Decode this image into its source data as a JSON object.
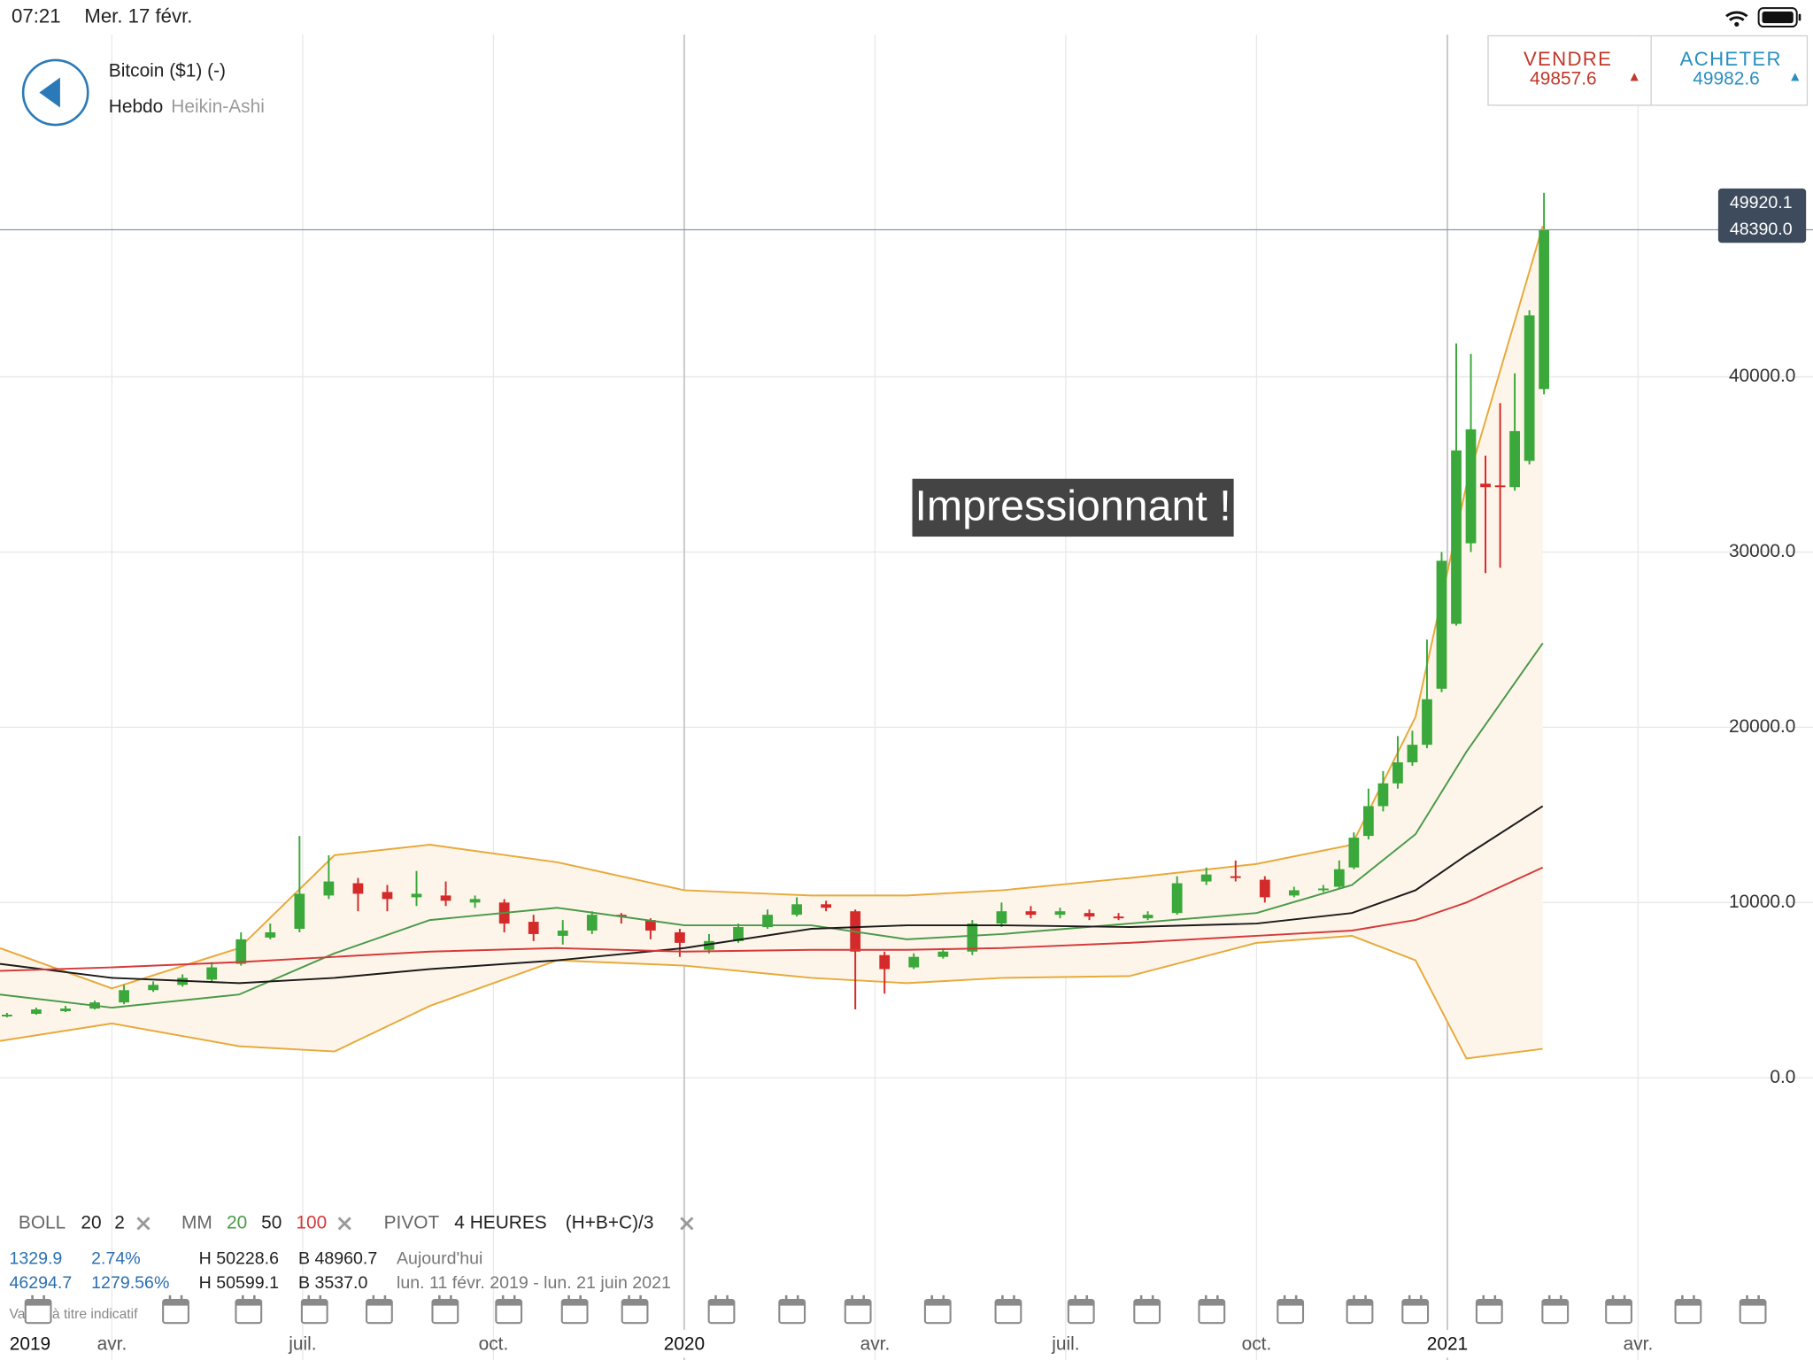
{
  "status": {
    "time": "07:21",
    "date": "Mer. 17 févr."
  },
  "header": {
    "instrument": "Bitcoin ($1) (-)",
    "period": "Hebdo",
    "chart_style": "Heikin-Ashi"
  },
  "trade": {
    "sell": {
      "label": "VENDRE",
      "price": "49857.6"
    },
    "buy": {
      "label": "ACHETER",
      "price": "49982.6"
    }
  },
  "price_box": [
    "49920.1",
    "48390.0"
  ],
  "indicators": {
    "boll": {
      "label": "BOLL",
      "params": [
        "20",
        "2"
      ]
    },
    "pivot": {
      "label": "PIVOT",
      "period": "4 HEURES",
      "formula": "(H+B+C)/3"
    }
  },
  "info": {
    "rows": [
      [
        "1329.9",
        "2.74%",
        "H 50228.6",
        "B 48960.7",
        "Aujourd'hui"
      ],
      [
        "46294.7",
        "1279.56%",
        "H 50599.1",
        "B 3537.0",
        "lun. 11 févr. 2019 - lun. 21 juin 2021"
      ]
    ],
    "disclaimer": "Valeur à titre indicatif"
  },
  "chart_data": {
    "type": "candlestick",
    "annotation": "Impressionnant !",
    "xlim": [
      1.24,
      29.75
    ],
    "xticks": [
      {
        "value": 0,
        "label": "2019"
      },
      {
        "value": 3,
        "label": "avr."
      },
      {
        "value": 6,
        "label": "juil."
      },
      {
        "value": 9,
        "label": "oct."
      },
      {
        "value": 12,
        "label": "2020"
      },
      {
        "value": 15,
        "label": "avr."
      },
      {
        "value": 18,
        "label": "juil."
      },
      {
        "value": 21,
        "label": "oct."
      },
      {
        "value": 24,
        "label": "2021"
      },
      {
        "value": 27,
        "label": "avr."
      }
    ],
    "ylim": [
      -10100,
      61500
    ],
    "yticks": [
      {
        "value": 0,
        "label": "0.0"
      },
      {
        "value": 10000,
        "label": "10000.0"
      },
      {
        "value": 20000,
        "label": "20000.0"
      },
      {
        "value": 30000,
        "label": "30000.0"
      },
      {
        "value": 40000,
        "label": "40000.0"
      }
    ],
    "grid": true,
    "up_color": "#3aa83a",
    "down_color": "#d42a2a",
    "candles": {
      "x": [
        1.35,
        1.81,
        2.27,
        2.73,
        3.19,
        3.65,
        4.11,
        4.57,
        5.03,
        5.49,
        5.95,
        6.41,
        6.87,
        7.33,
        7.79,
        8.25,
        8.71,
        9.17,
        9.63,
        10.09,
        10.55,
        11.01,
        11.47,
        11.93,
        12.39,
        12.85,
        13.31,
        13.77,
        14.23,
        14.69,
        15.15,
        15.61,
        16.07,
        16.53,
        16.99,
        17.45,
        17.91,
        18.37,
        18.83,
        19.29,
        19.75,
        20.21,
        20.67,
        21.13,
        21.59,
        22.05,
        22.3,
        22.53,
        22.76,
        22.99,
        23.22,
        23.45,
        23.68,
        23.91,
        24.14,
        24.37,
        24.6,
        24.83,
        25.06,
        25.29,
        25.52
      ],
      "open": [
        3500,
        3650,
        3800,
        3950,
        4300,
        5000,
        5300,
        5600,
        6500,
        8000,
        8500,
        10400,
        11100,
        10600,
        10300,
        10400,
        10000,
        10000,
        8900,
        8100,
        8400,
        9300,
        9000,
        8300,
        7300,
        7800,
        8600,
        9300,
        9900,
        9500,
        7000,
        6300,
        6900,
        7200,
        8800,
        9500,
        9300,
        9400,
        9200,
        9100,
        9400,
        11200,
        11500,
        11300,
        10400,
        10700,
        10900,
        12000,
        13800,
        15500,
        16800,
        18000,
        19000,
        22200,
        25900,
        30500,
        33900,
        33800,
        33700,
        35200,
        39300
      ],
      "high": [
        3700,
        4000,
        4100,
        4400,
        5300,
        5500,
        5900,
        6600,
        8300,
        8800,
        13800,
        12700,
        11400,
        11000,
        11800,
        11200,
        10400,
        10200,
        9300,
        9000,
        9500,
        9400,
        9100,
        8500,
        8200,
        8800,
        9600,
        10300,
        10100,
        9600,
        7200,
        7100,
        7400,
        9000,
        10000,
        9800,
        9700,
        9600,
        9400,
        9500,
        11500,
        12000,
        12400,
        11500,
        10900,
        11000,
        12400,
        14000,
        16500,
        17500,
        19500,
        19800,
        25000,
        30000,
        41900,
        41300,
        35500,
        38500,
        40200,
        43800,
        50500
      ],
      "low": [
        3450,
        3600,
        3750,
        3900,
        4200,
        4900,
        5200,
        5500,
        6400,
        7900,
        8300,
        10200,
        9500,
        9500,
        9800,
        9800,
        9700,
        8300,
        7800,
        7600,
        8200,
        8800,
        7900,
        6900,
        7100,
        7700,
        8500,
        9200,
        9500,
        3900,
        4800,
        6200,
        6800,
        7000,
        8600,
        9100,
        9100,
        9000,
        9000,
        9000,
        9300,
        11000,
        11200,
        10000,
        10300,
        10600,
        10800,
        11900,
        13600,
        15200,
        16500,
        17800,
        18800,
        22000,
        25800,
        30000,
        28800,
        29100,
        33500,
        35000,
        39000
      ],
      "close": [
        3600,
        3900,
        3950,
        4300,
        5000,
        5300,
        5700,
        6300,
        7900,
        8300,
        10500,
        11200,
        10500,
        10200,
        10500,
        10100,
        10200,
        8800,
        8200,
        8400,
        9300,
        9200,
        8400,
        7700,
        7800,
        8600,
        9300,
        9900,
        9700,
        7200,
        6200,
        6900,
        7200,
        8800,
        9500,
        9300,
        9500,
        9200,
        9100,
        9300,
        11100,
        11600,
        11400,
        10300,
        10700,
        10800,
        11900,
        13700,
        15500,
        16800,
        18000,
        19000,
        21600,
        29500,
        35800,
        37000,
        33700,
        33700,
        36900,
        43500,
        48390
      ]
    },
    "line_x": [
      1.24,
      3,
      5,
      6.5,
      8,
      10,
      12,
      14,
      15.5,
      17,
      19,
      21,
      22.5,
      23.5,
      24.3,
      25.5
    ],
    "bands": {
      "color": "#e8a93a",
      "fill": "#fdf5ea",
      "upper": [
        7400,
        5100,
        7400,
        12700,
        13300,
        12300,
        10700,
        10400,
        10400,
        10700,
        11400,
        12200,
        13300,
        20600,
        33800,
        48600
      ],
      "lower": [
        2100,
        3100,
        1800,
        1500,
        4100,
        6700,
        6400,
        5700,
        5400,
        5700,
        5800,
        7700,
        8100,
        6700,
        1100,
        1650
      ]
    },
    "ma_label": "MM",
    "series": [
      {
        "name": "20",
        "color": "#4a9a4a",
        "values": [
          4750,
          4000,
          4750,
          7100,
          9000,
          9700,
          8700,
          8700,
          7900,
          8200,
          8800,
          9400,
          11000,
          13900,
          18600,
          24800
        ]
      },
      {
        "name": "50",
        "color": "#1a1a1a",
        "values": [
          6500,
          5700,
          5400,
          5700,
          6200,
          6700,
          7400,
          8500,
          8700,
          8700,
          8600,
          8800,
          9400,
          10700,
          12700,
          15500
        ]
      },
      {
        "name": "100",
        "color": "#d43a3a",
        "values": [
          6100,
          6300,
          6600,
          6900,
          7200,
          7400,
          7200,
          7300,
          7300,
          7400,
          7700,
          8100,
          8400,
          9000,
          10000,
          12000
        ]
      }
    ]
  }
}
